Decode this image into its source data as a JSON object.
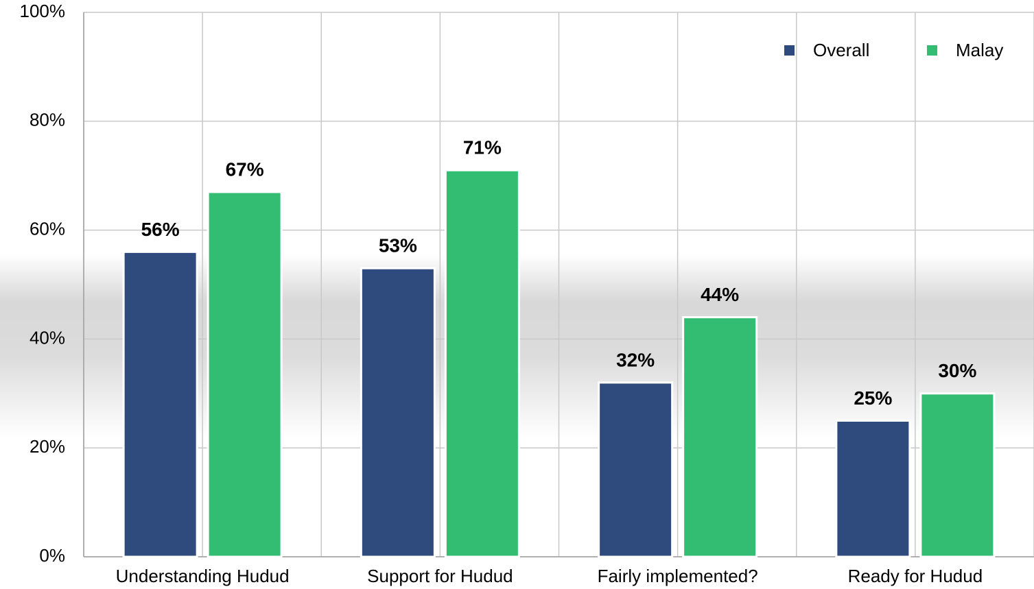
{
  "chart_data": {
    "type": "bar",
    "categories": [
      "Understanding Hudud",
      "Support for Hudud",
      "Fairly implemented?",
      "Ready for Hudud"
    ],
    "series": [
      {
        "name": "Overall",
        "color": "#2f4a7c",
        "values": [
          56,
          53,
          32,
          25
        ],
        "value_labels": [
          "56%",
          "53%",
          "32%",
          "25%"
        ]
      },
      {
        "name": "Malay",
        "color": "#33bd72",
        "values": [
          67,
          71,
          44,
          30
        ],
        "value_labels": [
          "67%",
          "71%",
          "44%",
          "30%"
        ]
      }
    ],
    "ylim": [
      0,
      100
    ],
    "yticks": [
      {
        "value": 0,
        "label": "0%"
      },
      {
        "value": 20,
        "label": "20%"
      },
      {
        "value": 40,
        "label": "40%"
      },
      {
        "value": 60,
        "label": "60%"
      },
      {
        "value": 80,
        "label": "80%"
      },
      {
        "value": 100,
        "label": "100%"
      }
    ],
    "grid": true,
    "legend": "top-right"
  }
}
